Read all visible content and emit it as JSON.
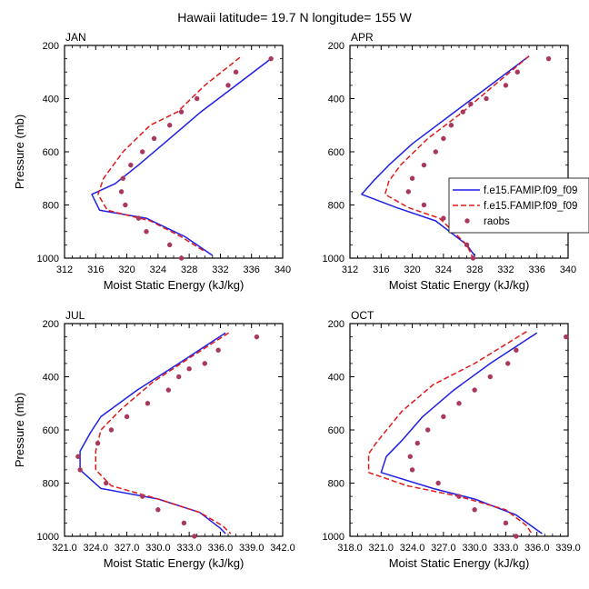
{
  "title": "Hawaii  latitude= 19.7 N longitude= 155 W",
  "colors": {
    "model1": "#1f1fe6",
    "model2": "#e01a1a",
    "raobs": "#a8385c",
    "axis": "#000000"
  },
  "legend": {
    "placement": "right of APR panel",
    "entries": [
      "f.e15.FAMIP.f09_f09",
      "f.e15.FAMIP.f09_f09",
      "raobs"
    ]
  },
  "chart_data": [
    {
      "type": "line",
      "panel": "JAN",
      "xlabel": "Moist Static Energy (kJ/kg)",
      "ylabel": "Pressure (mb)",
      "xlim": [
        312,
        340
      ],
      "ylim": [
        1000,
        200
      ],
      "xticks": [
        "312",
        "316",
        "320",
        "324",
        "328",
        "332",
        "336",
        "340"
      ],
      "yticks": [
        "200",
        "400",
        "600",
        "800",
        "1000"
      ],
      "series": [
        {
          "name": "f.e15.FAMIP.f09_f09",
          "style": "solid",
          "color": "#1f1fe6",
          "points": [
            [
              338.5,
              250
            ],
            [
              334.0,
              350
            ],
            [
              329.5,
              450
            ],
            [
              325.5,
              550
            ],
            [
              321.5,
              650
            ],
            [
              318.5,
              720
            ],
            [
              315.5,
              760
            ],
            [
              316.5,
              820
            ],
            [
              322.5,
              850
            ],
            [
              327.5,
              920
            ],
            [
              331.0,
              990
            ]
          ]
        },
        {
          "name": "f.e15.FAMIP.f09_f09",
          "style": "dashed",
          "color": "#e01a1a",
          "points": [
            [
              334.5,
              245
            ],
            [
              330.0,
              350
            ],
            [
              326.5,
              450
            ],
            [
              323.0,
              500
            ],
            [
              319.5,
              600
            ],
            [
              317.0,
              700
            ],
            [
              316.3,
              760
            ],
            [
              317.5,
              820
            ],
            [
              323.0,
              860
            ],
            [
              327.0,
              920
            ],
            [
              330.0,
              975
            ]
          ]
        },
        {
          "name": "raobs",
          "style": "markers",
          "color": "#a8385c",
          "points": [
            [
              338.5,
              250
            ],
            [
              334.0,
              300
            ],
            [
              333.0,
              350
            ],
            [
              329.0,
              400
            ],
            [
              327.0,
              450
            ],
            [
              325.5,
              500
            ],
            [
              323.5,
              550
            ],
            [
              322.0,
              600
            ],
            [
              320.5,
              650
            ],
            [
              319.5,
              700
            ],
            [
              319.3,
              750
            ],
            [
              319.8,
              800
            ],
            [
              321.5,
              850
            ],
            [
              322.5,
              900
            ],
            [
              325.5,
              950
            ],
            [
              327.0,
              1000
            ]
          ]
        }
      ]
    },
    {
      "type": "line",
      "panel": "APR",
      "xlabel": "Moist Static Energy (kJ/kg)",
      "ylabel": "",
      "xlim": [
        312,
        340
      ],
      "ylim": [
        1000,
        200
      ],
      "xticks": [
        "312",
        "316",
        "320",
        "324",
        "328",
        "332",
        "336",
        "340"
      ],
      "yticks": [
        "200",
        "400",
        "600",
        "800",
        "1000"
      ],
      "series": [
        {
          "name": "f.e15.FAMIP.f09_f09",
          "style": "solid",
          "color": "#1f1fe6",
          "points": [
            [
              335.0,
              240
            ],
            [
              330.0,
              350
            ],
            [
              325.0,
              460
            ],
            [
              320.0,
              570
            ],
            [
              317.0,
              650
            ],
            [
              315.0,
              710
            ],
            [
              313.5,
              760
            ],
            [
              318.0,
              810
            ],
            [
              323.0,
              860
            ],
            [
              327.0,
              950
            ],
            [
              328.0,
              990
            ]
          ]
        },
        {
          "name": "f.e15.FAMIP.f09_f09",
          "style": "dashed",
          "color": "#e01a1a",
          "points": [
            [
              335.0,
              240
            ],
            [
              330.5,
              350
            ],
            [
              326.5,
              450
            ],
            [
              322.0,
              550
            ],
            [
              318.5,
              650
            ],
            [
              317.0,
              710
            ],
            [
              316.5,
              760
            ],
            [
              319.5,
              810
            ],
            [
              323.5,
              850
            ],
            [
              327.0,
              950
            ],
            [
              327.8,
              1000
            ]
          ]
        },
        {
          "name": "raobs",
          "style": "markers",
          "color": "#a8385c",
          "points": [
            [
              337.5,
              250
            ],
            [
              333.5,
              300
            ],
            [
              332.0,
              350
            ],
            [
              329.5,
              400
            ],
            [
              327.5,
              420
            ],
            [
              326.5,
              450
            ],
            [
              325.0,
              500
            ],
            [
              324.0,
              550
            ],
            [
              323.0,
              600
            ],
            [
              321.5,
              650
            ],
            [
              320.0,
              700
            ],
            [
              319.5,
              750
            ],
            [
              321.5,
              800
            ],
            [
              324.0,
              850
            ],
            [
              327.0,
              950
            ],
            [
              327.8,
              1000
            ]
          ]
        }
      ]
    },
    {
      "type": "line",
      "panel": "JUL",
      "xlabel": "Moist Static Energy (kJ/kg)",
      "ylabel": "Pressure (mb)",
      "xlim": [
        321,
        342
      ],
      "ylim": [
        1000,
        200
      ],
      "xticks": [
        "321.0",
        "324.0",
        "327.0",
        "330.0",
        "333.0",
        "336.0",
        "339.0",
        "342.0"
      ],
      "yticks": [
        "200",
        "400",
        "600",
        "800",
        "1000"
      ],
      "series": [
        {
          "name": "f.e15.FAMIP.f09_f09",
          "style": "solid",
          "color": "#1f1fe6",
          "points": [
            [
              336.5,
              235
            ],
            [
              332.0,
              350
            ],
            [
              328.0,
              450
            ],
            [
              324.5,
              550
            ],
            [
              323.5,
              610
            ],
            [
              322.5,
              680
            ],
            [
              322.5,
              750
            ],
            [
              324.5,
              820
            ],
            [
              330.0,
              860
            ],
            [
              334.0,
              910
            ],
            [
              336.0,
              970
            ],
            [
              336.5,
              990
            ]
          ]
        },
        {
          "name": "f.e15.FAMIP.f09_f09",
          "style": "dashed",
          "color": "#e01a1a",
          "points": [
            [
              336.8,
              235
            ],
            [
              333.0,
              330
            ],
            [
              329.5,
              420
            ],
            [
              326.5,
              520
            ],
            [
              324.5,
              600
            ],
            [
              324.0,
              680
            ],
            [
              324.0,
              750
            ],
            [
              325.5,
              810
            ],
            [
              330.0,
              860
            ],
            [
              334.0,
              910
            ],
            [
              336.2,
              960
            ],
            [
              337.0,
              990
            ]
          ]
        },
        {
          "name": "raobs",
          "style": "markers",
          "color": "#a8385c",
          "points": [
            [
              339.5,
              250
            ],
            [
              335.8,
              300
            ],
            [
              334.5,
              350
            ],
            [
              333.0,
              370
            ],
            [
              332.0,
              400
            ],
            [
              331.0,
              450
            ],
            [
              329.0,
              500
            ],
            [
              327.0,
              550
            ],
            [
              325.5,
              600
            ],
            [
              324.2,
              650
            ],
            [
              322.3,
              700
            ],
            [
              322.5,
              750
            ],
            [
              325.0,
              800
            ],
            [
              328.5,
              850
            ],
            [
              330.0,
              900
            ],
            [
              332.5,
              950
            ],
            [
              333.5,
              1000
            ]
          ]
        }
      ]
    },
    {
      "type": "line",
      "panel": "OCT",
      "xlabel": "Moist Static Energy (kJ/kg)",
      "ylabel": "",
      "xlim": [
        318,
        339
      ],
      "ylim": [
        1000,
        200
      ],
      "xticks": [
        "318.0",
        "321.0",
        "324.0",
        "327.0",
        "330.0",
        "333.0",
        "336.0",
        "339.0"
      ],
      "yticks": [
        "200",
        "400",
        "600",
        "800",
        "1000"
      ],
      "series": [
        {
          "name": "f.e15.FAMIP.f09_f09",
          "style": "solid",
          "color": "#1f1fe6",
          "points": [
            [
              336.0,
              235
            ],
            [
              331.5,
              350
            ],
            [
              328.0,
              450
            ],
            [
              325.0,
              550
            ],
            [
              323.0,
              640
            ],
            [
              321.5,
              700
            ],
            [
              321.0,
              760
            ],
            [
              326.0,
              820
            ],
            [
              330.0,
              860
            ],
            [
              334.0,
              920
            ],
            [
              336.5,
              990
            ]
          ]
        },
        {
          "name": "f.e15.FAMIP.f09_f09",
          "style": "dashed",
          "color": "#e01a1a",
          "points": [
            [
              335.0,
              230
            ],
            [
              330.0,
              350
            ],
            [
              326.0,
              430
            ],
            [
              323.0,
              530
            ],
            [
              320.5,
              650
            ],
            [
              319.8,
              690
            ],
            [
              319.8,
              760
            ],
            [
              323.5,
              810
            ],
            [
              328.5,
              850
            ],
            [
              333.0,
              900
            ],
            [
              335.0,
              960
            ],
            [
              335.5,
              990
            ]
          ]
        },
        {
          "name": "raobs",
          "style": "markers",
          "color": "#a8385c",
          "points": [
            [
              338.8,
              250
            ],
            [
              334.0,
              300
            ],
            [
              333.2,
              350
            ],
            [
              331.5,
              400
            ],
            [
              330.0,
              450
            ],
            [
              328.5,
              500
            ],
            [
              327.0,
              550
            ],
            [
              325.5,
              600
            ],
            [
              324.5,
              650
            ],
            [
              323.8,
              700
            ],
            [
              324.0,
              750
            ],
            [
              326.5,
              800
            ],
            [
              328.5,
              850
            ],
            [
              330.0,
              900
            ],
            [
              333.0,
              950
            ],
            [
              334.0,
              1000
            ]
          ]
        }
      ]
    }
  ]
}
